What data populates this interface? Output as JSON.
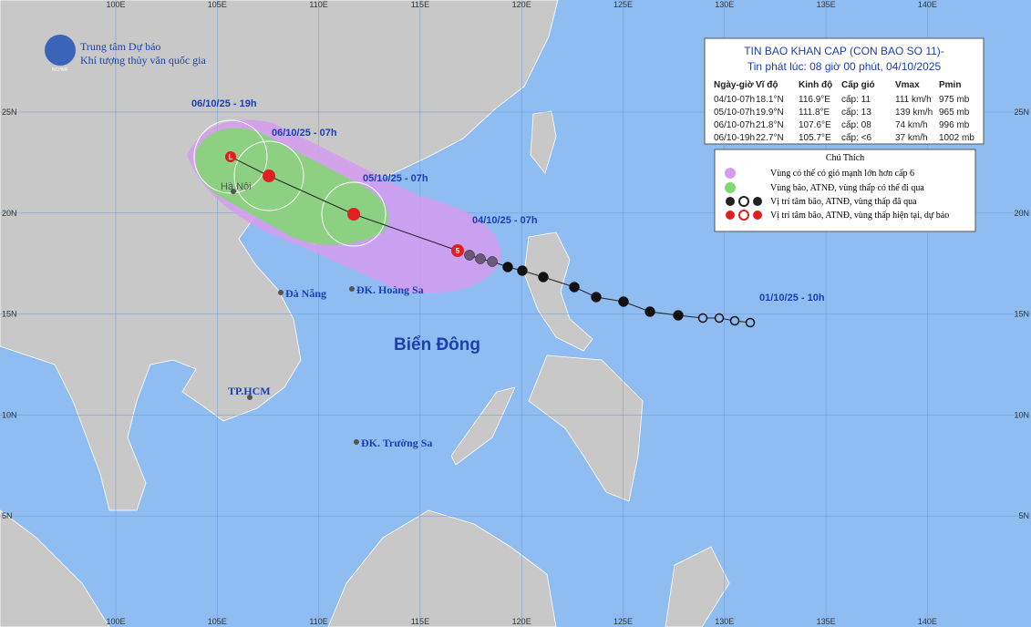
{
  "header": {
    "org_line1": "Trung tâm Dự báo",
    "org_line2": "Khí tượng thủy văn quốc gia",
    "logo_text": "NCHMF"
  },
  "bulletin": {
    "title": "TIN BAO KHAN CAP (CON BAO SO 11)-",
    "issued": "Tin phát lúc: 08 giờ 00 phút, 04/10/2025",
    "columns": [
      "Ngày-giờ",
      "Vĩ độ",
      "Kinh độ",
      "Cấp gió",
      "Vmax",
      "Pmin"
    ],
    "rows": [
      [
        "04/10-07h",
        "18.1°N",
        "116.9°E",
        "cấp: 11",
        "111 km/h",
        "975 mb"
      ],
      [
        "05/10-07h",
        "19.9°N",
        "111.8°E",
        "cấp: 13",
        "139 km/h",
        "965 mb"
      ],
      [
        "06/10-07h",
        "21.8°N",
        "107.6°E",
        "cấp: 08",
        "74 km/h",
        "996 mb"
      ],
      [
        "06/10-19h",
        "22.7°N",
        "105.7°E",
        "cấp: <6",
        "37 km/h",
        "1002 mb"
      ]
    ]
  },
  "legend": {
    "title": "Chú Thích",
    "items": [
      "Vùng có thể có gió mạnh lớn hơn cấp 6",
      "Vùng bão, ATNĐ, vùng thấp có thể đi qua",
      "Vị trí tâm bão, ATNĐ, vùng thấp đã qua",
      "Vị trí tâm bão, ATNĐ, vùng thấp hiện tại, dự báo"
    ]
  },
  "map": {
    "lon_labels": [
      "100E",
      "105E",
      "110E",
      "115E",
      "120E",
      "125E",
      "130E",
      "135E",
      "140E"
    ],
    "lat_labels": [
      "25N",
      "20N",
      "15N",
      "10N",
      "5N"
    ],
    "track_labels": [
      "06/10/25 - 19h",
      "06/10/25 - 07h",
      "05/10/25 - 07h",
      "04/10/25 - 07h",
      "01/10/25 - 10h"
    ],
    "places": [
      "Hà Nội",
      "Đà Nẵng",
      "ĐK. Hoàng Sa",
      "TP.HCM",
      "ĐK. Trường Sa"
    ],
    "sea": "Biển Đông"
  }
}
